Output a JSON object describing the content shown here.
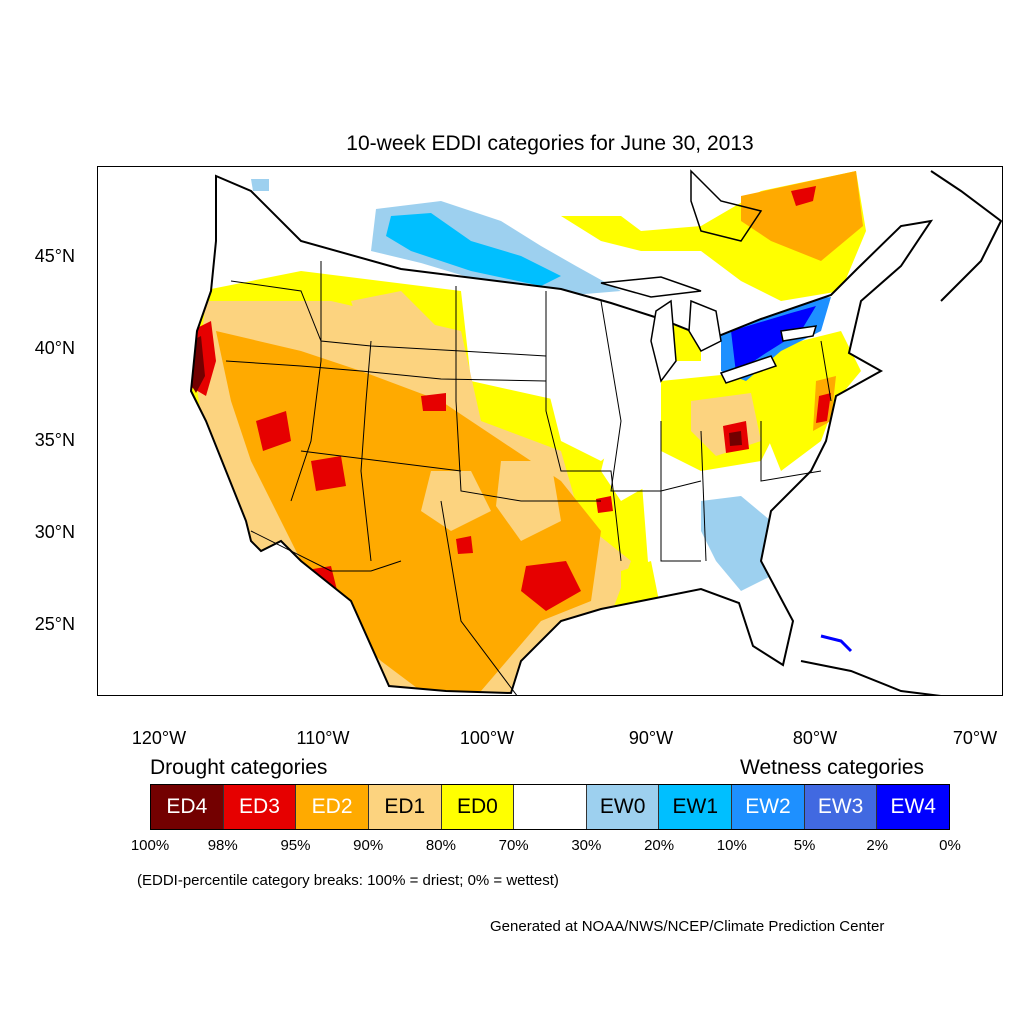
{
  "title": "10-week EDDI categories for June 30, 2013",
  "lat_labels": [
    "45°N",
    "40°N",
    "35°N",
    "30°N",
    "25°N"
  ],
  "lon_labels": [
    "120°W",
    "110°W",
    "100°W",
    "90°W",
    "80°W",
    "70°W"
  ],
  "legend": {
    "drought_heading": "Drought categories",
    "wetness_heading": "Wetness categories",
    "categories": [
      {
        "label": "ED4",
        "color": "#730000",
        "text_color": "#ffffff"
      },
      {
        "label": "ED3",
        "color": "#e60000",
        "text_color": "#ffffff"
      },
      {
        "label": "ED2",
        "color": "#ffaa00",
        "text_color": "#ffffff"
      },
      {
        "label": "ED1",
        "color": "#fcd37f",
        "text_color": "#000000"
      },
      {
        "label": "ED0",
        "color": "#ffff00",
        "text_color": "#000000"
      },
      {
        "label": "",
        "color": "#ffffff",
        "text_color": "#000000"
      },
      {
        "label": "EW0",
        "color": "#9dd0ef",
        "text_color": "#000000"
      },
      {
        "label": "EW1",
        "color": "#00bfff",
        "text_color": "#000000"
      },
      {
        "label": "EW2",
        "color": "#1e90ff",
        "text_color": "#ffffff"
      },
      {
        "label": "EW3",
        "color": "#4169e1",
        "text_color": "#ffffff"
      },
      {
        "label": "EW4",
        "color": "#0000ff",
        "text_color": "#ffffff"
      }
    ],
    "breaks": [
      "100%",
      "98%",
      "95%",
      "90%",
      "80%",
      "70%",
      "30%",
      "20%",
      "10%",
      "5%",
      "2%",
      "0%"
    ]
  },
  "breaks_note": "(EDDI-percentile category breaks: 100% = driest; 0% = wettest)",
  "credit": "Generated at NOAA/NWS/NCEP/Climate Prediction Center"
}
